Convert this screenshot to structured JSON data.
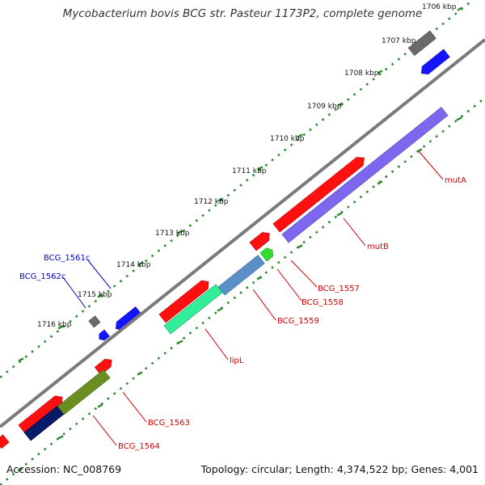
{
  "title": "Mycobacterium bovis BCG str. Pasteur 1173P2, complete genome",
  "footer": {
    "accession": "Accession: NC_008769",
    "summary": "Topology: circular; Length: 4,374,522 bp; Genes: 4,001"
  },
  "ticks": [
    "1706 kbp",
    "1707 kbp",
    "1708 kbp",
    "1709 kbp",
    "1710 kbp",
    "1711 kbp",
    "1712 kbp",
    "1713 kbp",
    "1714 kbp",
    "1715 kbp",
    "1716 kbp"
  ],
  "gene_labels": {
    "mutA": "mutA",
    "mutB": "mutB",
    "bcg1557": "BCG_1557",
    "bcg1558": "BCG_1558",
    "bcg1559": "BCG_1559",
    "lipL": "lipL",
    "bcg1561c": "BCG_1561c",
    "bcg1562c": "BCG_1562c",
    "bcg1563": "BCG_1563",
    "bcg1564": "BCG_1564"
  },
  "colors": {
    "backbone": "#7a7a7a",
    "tick_dots": "#2e8b2e",
    "forward_gene": "#ff1010",
    "mutB": "#7b68ee",
    "BCG_1558": "#5b8fc8",
    "lipL": "#33ee99",
    "BCG_1563": "#6b8e23",
    "BCG_1564": "#0a1a6a",
    "reverse_gene": "#1414ff",
    "misc_gene": "#6a6a6a",
    "forward_label": "#cc0000",
    "reverse_label": "#0000cc"
  }
}
